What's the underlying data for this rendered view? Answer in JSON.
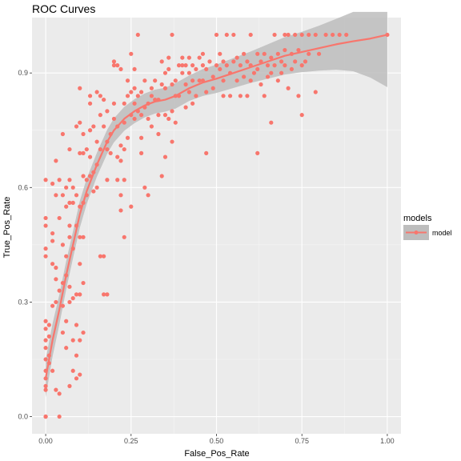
{
  "chart_data": {
    "type": "scatter",
    "title": "ROC Curves",
    "xlabel": "False_Pos_Rate",
    "ylabel": "True_Pos_Rate",
    "xlim": [
      -0.04,
      1.04
    ],
    "ylim": [
      -0.045,
      1.045
    ],
    "x_ticks": [
      0.0,
      0.25,
      0.5,
      0.75,
      1.0
    ],
    "x_tick_labels": [
      "0.00",
      "0.25",
      "0.50",
      "0.75",
      "1.00"
    ],
    "y_ticks": [
      0.0,
      0.3,
      0.6,
      0.9
    ],
    "y_tick_labels": [
      "0.0",
      "0.3",
      "0.6",
      "0.9"
    ],
    "grid": true,
    "legend": {
      "title": "models",
      "position": "right",
      "entries": [
        "model"
      ]
    },
    "colors": {
      "points": "#f8766d",
      "smooth": "#f8766d",
      "band": "#bdbdbd",
      "panel": "#ebebeb",
      "grid_major": "#ffffff"
    },
    "series": [
      {
        "name": "model",
        "points": [
          [
            0.0,
            0.0
          ],
          [
            0.0,
            0.0
          ],
          [
            0.0,
            0.0
          ],
          [
            0.0,
            0.07
          ],
          [
            0.0,
            0.08
          ],
          [
            0.0,
            0.1
          ],
          [
            0.0,
            0.12
          ],
          [
            0.0,
            0.15
          ],
          [
            0.0,
            0.18
          ],
          [
            0.0,
            0.2
          ],
          [
            0.0,
            0.23
          ],
          [
            0.0,
            0.25
          ],
          [
            0.0,
            0.42
          ],
          [
            0.0,
            0.44
          ],
          [
            0.0,
            0.5
          ],
          [
            0.0,
            0.52
          ],
          [
            0.0,
            0.62
          ],
          [
            0.01,
            0.14
          ],
          [
            0.01,
            0.16
          ],
          [
            0.01,
            0.21
          ],
          [
            0.01,
            0.24
          ],
          [
            0.02,
            0.12
          ],
          [
            0.02,
            0.29
          ],
          [
            0.02,
            0.4
          ],
          [
            0.02,
            0.46
          ],
          [
            0.02,
            0.48
          ],
          [
            0.02,
            0.61
          ],
          [
            0.03,
            0.07
          ],
          [
            0.03,
            0.3
          ],
          [
            0.03,
            0.36
          ],
          [
            0.03,
            0.39
          ],
          [
            0.03,
            0.58
          ],
          [
            0.03,
            0.67
          ],
          [
            0.04,
            0.06
          ],
          [
            0.04,
            0.33
          ],
          [
            0.04,
            0.52
          ],
          [
            0.04,
            0.62
          ],
          [
            0.04,
            0.0
          ],
          [
            0.05,
            0.22
          ],
          [
            0.05,
            0.29
          ],
          [
            0.05,
            0.35
          ],
          [
            0.05,
            0.45
          ],
          [
            0.05,
            0.58
          ],
          [
            0.05,
            0.74
          ],
          [
            0.06,
            0.18
          ],
          [
            0.06,
            0.25
          ],
          [
            0.06,
            0.37
          ],
          [
            0.06,
            0.42
          ],
          [
            0.06,
            0.55
          ],
          [
            0.06,
            0.6
          ],
          [
            0.07,
            0.08
          ],
          [
            0.07,
            0.3
          ],
          [
            0.07,
            0.34
          ],
          [
            0.07,
            0.47
          ],
          [
            0.07,
            0.5
          ],
          [
            0.07,
            0.56
          ],
          [
            0.07,
            0.62
          ],
          [
            0.07,
            0.7
          ],
          [
            0.08,
            0.12
          ],
          [
            0.08,
            0.2
          ],
          [
            0.08,
            0.31
          ],
          [
            0.08,
            0.44
          ],
          [
            0.08,
            0.56
          ],
          [
            0.08,
            0.6
          ],
          [
            0.09,
            0.1
          ],
          [
            0.09,
            0.16
          ],
          [
            0.09,
            0.24
          ],
          [
            0.09,
            0.32
          ],
          [
            0.09,
            0.5
          ],
          [
            0.09,
            0.58
          ],
          [
            0.09,
            0.76
          ],
          [
            0.1,
            0.11
          ],
          [
            0.1,
            0.2
          ],
          [
            0.1,
            0.32
          ],
          [
            0.1,
            0.4
          ],
          [
            0.1,
            0.47
          ],
          [
            0.1,
            0.55
          ],
          [
            0.1,
            0.69
          ],
          [
            0.1,
            0.77
          ],
          [
            0.1,
            0.86
          ],
          [
            0.11,
            0.22
          ],
          [
            0.11,
            0.35
          ],
          [
            0.11,
            0.47
          ],
          [
            0.11,
            0.56
          ],
          [
            0.11,
            0.63
          ],
          [
            0.11,
            0.69
          ],
          [
            0.11,
            0.74
          ],
          [
            0.12,
            0.58
          ],
          [
            0.12,
            0.62
          ],
          [
            0.12,
            0.7
          ],
          [
            0.13,
            0.63
          ],
          [
            0.13,
            0.68
          ],
          [
            0.13,
            0.75
          ],
          [
            0.13,
            0.82
          ],
          [
            0.13,
            0.84
          ],
          [
            0.14,
            0.59
          ],
          [
            0.14,
            0.64
          ],
          [
            0.14,
            0.76
          ],
          [
            0.15,
            0.6
          ],
          [
            0.15,
            0.66
          ],
          [
            0.15,
            0.72
          ],
          [
            0.15,
            0.85
          ],
          [
            0.16,
            0.42
          ],
          [
            0.16,
            0.7
          ],
          [
            0.16,
            0.79
          ],
          [
            0.16,
            0.84
          ],
          [
            0.17,
            0.32
          ],
          [
            0.17,
            0.42
          ],
          [
            0.17,
            0.76
          ],
          [
            0.17,
            0.83
          ],
          [
            0.18,
            0.32
          ],
          [
            0.18,
            0.62
          ],
          [
            0.18,
            0.7
          ],
          [
            0.18,
            0.72
          ],
          [
            0.18,
            0.8
          ],
          [
            0.19,
            0.69
          ],
          [
            0.19,
            0.74
          ],
          [
            0.2,
            0.78
          ],
          [
            0.2,
            0.82
          ],
          [
            0.2,
            0.92
          ],
          [
            0.2,
            0.93
          ],
          [
            0.21,
            0.62
          ],
          [
            0.21,
            0.68
          ],
          [
            0.21,
            0.76
          ],
          [
            0.21,
            0.92
          ],
          [
            0.22,
            0.54
          ],
          [
            0.22,
            0.58
          ],
          [
            0.22,
            0.67
          ],
          [
            0.22,
            0.71
          ],
          [
            0.22,
            0.91
          ],
          [
            0.23,
            0.47
          ],
          [
            0.23,
            0.62
          ],
          [
            0.23,
            0.7
          ],
          [
            0.23,
            0.77
          ],
          [
            0.23,
            0.82
          ],
          [
            0.24,
            0.73
          ],
          [
            0.24,
            0.84
          ],
          [
            0.24,
            0.88
          ],
          [
            0.25,
            0.55
          ],
          [
            0.25,
            0.79
          ],
          [
            0.25,
            0.85
          ],
          [
            0.25,
            0.95
          ],
          [
            0.26,
            0.78
          ],
          [
            0.26,
            0.82
          ],
          [
            0.26,
            0.86
          ],
          [
            0.26,
            0.91
          ],
          [
            0.27,
            1.0
          ],
          [
            0.27,
            0.8
          ],
          [
            0.27,
            0.84
          ],
          [
            0.28,
            0.69
          ],
          [
            0.28,
            0.73
          ],
          [
            0.28,
            0.79
          ],
          [
            0.28,
            0.85
          ],
          [
            0.29,
            0.6
          ],
          [
            0.29,
            0.81
          ],
          [
            0.29,
            0.88
          ],
          [
            0.3,
            0.58
          ],
          [
            0.3,
            0.78
          ],
          [
            0.3,
            0.82
          ],
          [
            0.31,
            0.76
          ],
          [
            0.31,
            0.84
          ],
          [
            0.31,
            0.86
          ],
          [
            0.32,
            0.83
          ],
          [
            0.32,
            0.88
          ],
          [
            0.33,
            0.74
          ],
          [
            0.33,
            0.79
          ],
          [
            0.33,
            0.83
          ],
          [
            0.34,
            0.63
          ],
          [
            0.34,
            0.87
          ],
          [
            0.34,
            0.93
          ],
          [
            0.35,
            0.68
          ],
          [
            0.35,
            0.79
          ],
          [
            0.35,
            0.86
          ],
          [
            0.35,
            0.9
          ],
          [
            0.36,
            0.78
          ],
          [
            0.36,
            0.91
          ],
          [
            0.36,
            0.94
          ],
          [
            0.37,
            1.0
          ],
          [
            0.37,
            0.72
          ],
          [
            0.37,
            0.8
          ],
          [
            0.37,
            0.87
          ],
          [
            0.38,
            0.77
          ],
          [
            0.38,
            0.84
          ],
          [
            0.38,
            0.88
          ],
          [
            0.39,
            0.84
          ],
          [
            0.39,
            0.92
          ],
          [
            0.4,
            0.9
          ],
          [
            0.4,
            0.92
          ],
          [
            0.4,
            0.94
          ],
          [
            0.41,
            0.81
          ],
          [
            0.41,
            0.87
          ],
          [
            0.41,
            0.92
          ],
          [
            0.42,
            0.85
          ],
          [
            0.42,
            0.9
          ],
          [
            0.42,
            0.94
          ],
          [
            0.43,
            0.82
          ],
          [
            0.43,
            0.88
          ],
          [
            0.43,
            0.92
          ],
          [
            0.44,
            0.84
          ],
          [
            0.44,
            0.91
          ],
          [
            0.45,
            0.88
          ],
          [
            0.45,
            0.94
          ],
          [
            0.46,
            0.88
          ],
          [
            0.46,
            0.92
          ],
          [
            0.46,
            0.95
          ],
          [
            0.47,
            0.69
          ],
          [
            0.47,
            0.85
          ],
          [
            0.47,
            0.91
          ],
          [
            0.48,
            0.93
          ],
          [
            0.49,
            0.86
          ],
          [
            0.49,
            0.89
          ],
          [
            0.5,
            1.0
          ],
          [
            0.5,
            0.92
          ],
          [
            0.51,
            0.91
          ],
          [
            0.51,
            0.95
          ],
          [
            0.52,
            0.84
          ],
          [
            0.52,
            0.88
          ],
          [
            0.52,
            0.93
          ],
          [
            0.53,
            1.0
          ],
          [
            0.53,
            0.92
          ],
          [
            0.54,
            0.84
          ],
          [
            0.54,
            0.9
          ],
          [
            0.55,
            1.0
          ],
          [
            0.55,
            0.93
          ],
          [
            0.56,
            0.88
          ],
          [
            0.56,
            0.94
          ],
          [
            0.57,
            0.84
          ],
          [
            0.57,
            0.92
          ],
          [
            0.58,
            0.89
          ],
          [
            0.58,
            0.95
          ],
          [
            0.59,
            0.84
          ],
          [
            0.59,
            0.93
          ],
          [
            0.6,
            1.0
          ],
          [
            0.6,
            0.88
          ],
          [
            0.6,
            0.92
          ],
          [
            0.61,
            0.9
          ],
          [
            0.62,
            0.69
          ],
          [
            0.62,
            0.91
          ],
          [
            0.62,
            0.95
          ],
          [
            0.63,
            0.87
          ],
          [
            0.63,
            0.93
          ],
          [
            0.64,
            0.84
          ],
          [
            0.64,
            0.95
          ],
          [
            0.65,
            0.89
          ],
          [
            0.65,
            0.92
          ],
          [
            0.66,
            0.77
          ],
          [
            0.66,
            0.9
          ],
          [
            0.66,
            0.94
          ],
          [
            0.67,
            1.0
          ],
          [
            0.67,
            0.92
          ],
          [
            0.68,
            0.88
          ],
          [
            0.68,
            0.95
          ],
          [
            0.69,
            0.9
          ],
          [
            0.69,
            0.93
          ],
          [
            0.7,
            1.0
          ],
          [
            0.7,
            0.92
          ],
          [
            0.7,
            0.96
          ],
          [
            0.71,
            1.0
          ],
          [
            0.71,
            0.86
          ],
          [
            0.72,
            0.91
          ],
          [
            0.72,
            0.95
          ],
          [
            0.73,
            1.0
          ],
          [
            0.73,
            0.93
          ],
          [
            0.74,
            0.84
          ],
          [
            0.74,
            0.96
          ],
          [
            0.75,
            1.0
          ],
          [
            0.75,
            0.79
          ],
          [
            0.75,
            0.92
          ],
          [
            0.76,
            0.93
          ],
          [
            0.77,
            1.0
          ],
          [
            0.77,
            0.95
          ],
          [
            0.79,
            0.85
          ],
          [
            0.79,
            1.0
          ],
          [
            0.8,
            0.95
          ],
          [
            0.82,
            1.0
          ],
          [
            0.84,
            1.0
          ],
          [
            0.86,
            1.0
          ],
          [
            0.88,
            1.0
          ],
          [
            1.0,
            1.0
          ]
        ]
      }
    ],
    "smooth": {
      "x": [
        0.0,
        0.02,
        0.04,
        0.06,
        0.08,
        0.1,
        0.12,
        0.15,
        0.18,
        0.2,
        0.23,
        0.26,
        0.29,
        0.32,
        0.35,
        0.38,
        0.42,
        0.46,
        0.5,
        0.55,
        0.6,
        0.65,
        0.7,
        0.75,
        0.8,
        0.85,
        0.9,
        0.95,
        1.0
      ],
      "y": [
        0.1,
        0.2,
        0.28,
        0.37,
        0.45,
        0.53,
        0.59,
        0.66,
        0.72,
        0.75,
        0.78,
        0.8,
        0.815,
        0.825,
        0.83,
        0.84,
        0.86,
        0.875,
        0.885,
        0.9,
        0.915,
        0.93,
        0.945,
        0.955,
        0.965,
        0.975,
        0.983,
        0.99,
        1.0
      ],
      "se": [
        0.025,
        0.022,
        0.02,
        0.019,
        0.018,
        0.018,
        0.017,
        0.016,
        0.016,
        0.016,
        0.016,
        0.016,
        0.016,
        0.016,
        0.016,
        0.017,
        0.017,
        0.018,
        0.019,
        0.02,
        0.021,
        0.023,
        0.025,
        0.027,
        0.03,
        0.034,
        0.04,
        0.052,
        0.07
      ]
    }
  }
}
